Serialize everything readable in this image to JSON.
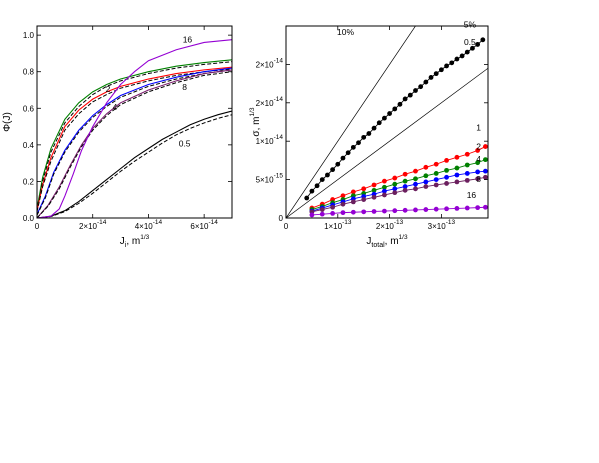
{
  "chart_data": [
    {
      "type": "line",
      "ylabel": "Φ(J)",
      "xlabel_main": "J",
      "xlabel_sub": "i",
      "xlabel_unit": "m",
      "xlabel_unit_exp": "1/3",
      "xlim": [
        0,
        7e-14
      ],
      "ylim": [
        0,
        1.05
      ],
      "xticks": [
        {
          "value": 0,
          "label": "0",
          "exp": ""
        },
        {
          "value": 2e-14,
          "label": "2×10",
          "exp": "-14"
        },
        {
          "value": 4e-14,
          "label": "4×10",
          "exp": "-14"
        },
        {
          "value": 6e-14,
          "label": "6×10",
          "exp": "-14"
        }
      ],
      "yticks": [
        {
          "value": 0,
          "label": "0.0"
        },
        {
          "value": 0.2,
          "label": "0.2"
        },
        {
          "value": 0.4,
          "label": "0.4"
        },
        {
          "value": 0.6,
          "label": "0.6"
        },
        {
          "value": 0.8,
          "label": "0.8"
        },
        {
          "value": 1.0,
          "label": "1.0"
        }
      ],
      "series": [
        {
          "label": "0.5",
          "color": "#000000",
          "x": [
            0,
            5e-15,
            1e-14,
            1.5e-14,
            2e-14,
            2.5e-14,
            3e-14,
            3.5e-14,
            4e-14,
            4.5e-14,
            5e-14,
            5.5e-14,
            6e-14,
            6.5e-14,
            7e-14
          ],
          "y": [
            0,
            0.01,
            0.04,
            0.09,
            0.15,
            0.21,
            0.27,
            0.33,
            0.38,
            0.43,
            0.47,
            0.51,
            0.54,
            0.565,
            0.585
          ],
          "dashed_y": [
            0,
            0.008,
            0.035,
            0.08,
            0.135,
            0.195,
            0.255,
            0.31,
            0.36,
            0.41,
            0.455,
            0.49,
            0.52,
            0.545,
            0.565
          ]
        },
        {
          "label": "2",
          "color": "#008000",
          "x": [
            0,
            2e-15,
            5e-15,
            1e-14,
            1.5e-14,
            2e-14,
            2.5e-14,
            3e-14,
            4e-14,
            5e-14,
            6e-14,
            7e-14
          ],
          "y": [
            0.05,
            0.22,
            0.38,
            0.54,
            0.63,
            0.69,
            0.73,
            0.76,
            0.8,
            0.83,
            0.85,
            0.865
          ],
          "dashed_y": [
            0.04,
            0.2,
            0.36,
            0.52,
            0.61,
            0.675,
            0.72,
            0.75,
            0.79,
            0.82,
            0.84,
            0.855
          ]
        },
        {
          "label": "",
          "color": "#ff0000",
          "x": [
            0,
            2e-15,
            5e-15,
            1e-14,
            1.5e-14,
            2e-14,
            2.5e-14,
            3e-14,
            4e-14,
            5e-14,
            6e-14,
            7e-14
          ],
          "y": [
            0.04,
            0.18,
            0.33,
            0.5,
            0.59,
            0.65,
            0.69,
            0.72,
            0.76,
            0.79,
            0.81,
            0.825
          ],
          "dashed_y": [
            0.035,
            0.17,
            0.31,
            0.48,
            0.57,
            0.635,
            0.675,
            0.71,
            0.75,
            0.78,
            0.8,
            0.815
          ]
        },
        {
          "label": "4",
          "color": "#0000ff",
          "x": [
            0,
            3e-15,
            6e-15,
            1e-14,
            1.5e-14,
            2e-14,
            2.5e-14,
            3e-14,
            4e-14,
            5e-14,
            6e-14,
            7e-14
          ],
          "y": [
            0.02,
            0.12,
            0.25,
            0.37,
            0.48,
            0.56,
            0.62,
            0.67,
            0.73,
            0.77,
            0.8,
            0.82
          ],
          "dashed_y": [
            0.015,
            0.11,
            0.24,
            0.36,
            0.47,
            0.55,
            0.61,
            0.66,
            0.72,
            0.76,
            0.79,
            0.81
          ]
        },
        {
          "label": "8",
          "color": "#7a1f6e",
          "x": [
            0,
            4e-15,
            8e-15,
            1.2e-14,
            1.6e-14,
            2e-14,
            2.5e-14,
            3e-14,
            4e-14,
            5e-14,
            6e-14,
            7e-14
          ],
          "y": [
            0,
            0.07,
            0.17,
            0.29,
            0.4,
            0.49,
            0.57,
            0.63,
            0.7,
            0.75,
            0.79,
            0.81
          ],
          "dashed_y": [
            0,
            0.065,
            0.16,
            0.28,
            0.39,
            0.48,
            0.56,
            0.62,
            0.69,
            0.74,
            0.78,
            0.8
          ]
        },
        {
          "label": "16",
          "color": "#9400d3",
          "x": [
            0,
            5e-15,
            8e-15,
            1e-14,
            1.3e-14,
            1.6e-14,
            2e-14,
            2.5e-14,
            3e-14,
            3.5e-14,
            4e-14,
            5e-14,
            6e-14,
            7e-14
          ],
          "y": [
            0,
            0.01,
            0.05,
            0.12,
            0.24,
            0.37,
            0.5,
            0.63,
            0.73,
            0.8,
            0.86,
            0.92,
            0.96,
            0.975
          ],
          "dashed_y": []
        }
      ],
      "curve_labels": [
        {
          "text": "16",
          "x": 5.4e-14,
          "y": 0.96
        },
        {
          "text": "2",
          "x": 2.55e-14,
          "y": 0.69
        },
        {
          "text": "4",
          "x": 2.8e-14,
          "y": 0.59
        },
        {
          "text": "8",
          "x": 5.3e-14,
          "y": 0.7
        },
        {
          "text": "0.5",
          "x": 5.3e-14,
          "y": 0.39
        }
      ]
    },
    {
      "type": "scatter",
      "xlabel_main": "J",
      "xlabel_sub": "total",
      "xlabel_unit": "m",
      "xlabel_unit_exp": "1/3",
      "ylabel_main": "σ, m",
      "ylabel_exp": "1/3",
      "xlim": [
        0,
        3.9e-13
      ],
      "ylim": [
        0,
        2.5e-14
      ],
      "xticks": [
        {
          "value": 0,
          "label": "0",
          "exp": ""
        },
        {
          "value": 1e-13,
          "label": "1×10",
          "exp": "-13"
        },
        {
          "value": 2e-13,
          "label": "2×10",
          "exp": "-13"
        },
        {
          "value": 3e-13,
          "label": "3×10",
          "exp": "-13"
        }
      ],
      "yticks": [
        {
          "value": 0,
          "label": "0",
          "exp": ""
        },
        {
          "value": 5e-15,
          "label": "5×10",
          "exp": "-15"
        },
        {
          "value": 1e-14,
          "label": "1×10",
          "exp": "-14"
        },
        {
          "value": 1.5e-14,
          "label": "2×10",
          "exp": "-14"
        },
        {
          "value": 2e-14,
          "label": "2×10",
          "exp": "-14"
        }
      ],
      "reference_lines": [
        {
          "label": "10%",
          "slope": 0.1
        },
        {
          "label": "5%",
          "slope": 0.05
        }
      ],
      "series": [
        {
          "label": "0.5",
          "color": "#000000",
          "x": [
            4e-14,
            5e-14,
            6e-14,
            7e-14,
            8e-14,
            9e-14,
            1e-13,
            1.1e-13,
            1.2e-13,
            1.3e-13,
            1.4e-13,
            1.5e-13,
            1.6e-13,
            1.7e-13,
            1.8e-13,
            1.9e-13,
            2e-13,
            2.1e-13,
            2.2e-13,
            2.3e-13,
            2.4e-13,
            2.5e-13,
            2.6e-13,
            2.7e-13,
            2.8e-13,
            2.9e-13,
            3e-13,
            3.1e-13,
            3.2e-13,
            3.3e-13,
            3.4e-13,
            3.5e-13,
            3.6e-13,
            3.7e-13,
            3.8e-13
          ],
          "y": [
            2.6e-15,
            3.5e-15,
            4.2e-15,
            5e-15,
            5.6e-15,
            6.3e-15,
            7e-15,
            7.8e-15,
            8.5e-15,
            9.2e-15,
            9.8e-15,
            1.05e-14,
            1.1e-14,
            1.17e-14,
            1.24e-14,
            1.3e-14,
            1.36e-14,
            1.42e-14,
            1.48e-14,
            1.55e-14,
            1.6e-14,
            1.66e-14,
            1.71e-14,
            1.77e-14,
            1.83e-14,
            1.88e-14,
            1.93e-14,
            1.98e-14,
            2.02e-14,
            2.07e-14,
            2.11e-14,
            2.16e-14,
            2.21e-14,
            2.26e-14,
            2.32e-14
          ]
        },
        {
          "label": "1",
          "color": "#ff0000",
          "x": [
            5e-14,
            7e-14,
            9e-14,
            1.1e-13,
            1.3e-13,
            1.5e-13,
            1.7e-13,
            1.9e-13,
            2.1e-13,
            2.3e-13,
            2.5e-13,
            2.7e-13,
            2.9e-13,
            3.1e-13,
            3.3e-13,
            3.5e-13,
            3.7e-13,
            3.85e-13
          ],
          "y": [
            1.3e-15,
            1.8e-15,
            2.4e-15,
            2.9e-15,
            3.4e-15,
            3.8e-15,
            4.3e-15,
            4.8e-15,
            5.2e-15,
            5.7e-15,
            6.1e-15,
            6.6e-15,
            7e-15,
            7.5e-15,
            7.9e-15,
            8.3e-15,
            8.8e-15,
            9.3e-15
          ]
        },
        {
          "label": "2",
          "color": "#008000",
          "x": [
            5e-14,
            7e-14,
            9e-14,
            1.1e-13,
            1.3e-13,
            1.5e-13,
            1.7e-13,
            1.9e-13,
            2.1e-13,
            2.3e-13,
            2.5e-13,
            2.7e-13,
            2.9e-13,
            3.1e-13,
            3.3e-13,
            3.5e-13,
            3.7e-13,
            3.85e-13
          ],
          "y": [
            1.1e-15,
            1.5e-15,
            2e-15,
            2.4e-15,
            2.9e-15,
            3.2e-15,
            3.6e-15,
            4e-15,
            4.4e-15,
            4.8e-15,
            5.1e-15,
            5.5e-15,
            5.8e-15,
            6.2e-15,
            6.5e-15,
            6.9e-15,
            7.2e-15,
            7.6e-15
          ]
        },
        {
          "label": "4",
          "color": "#0000ff",
          "x": [
            5e-14,
            7e-14,
            9e-14,
            1.1e-13,
            1.3e-13,
            1.5e-13,
            1.7e-13,
            1.9e-13,
            2.1e-13,
            2.3e-13,
            2.5e-13,
            2.7e-13,
            2.9e-13,
            3.1e-13,
            3.3e-13,
            3.5e-13,
            3.7e-13,
            3.85e-13
          ],
          "y": [
            9e-16,
            1.3e-15,
            1.7e-15,
            2.1e-15,
            2.5e-15,
            2.8e-15,
            3.1e-15,
            3.5e-15,
            3.8e-15,
            4.1e-15,
            4.4e-15,
            4.7e-15,
            5e-15,
            5.3e-15,
            5.6e-15,
            5.8e-15,
            6e-15,
            6.1e-15
          ]
        },
        {
          "label": "8",
          "color": "#6b1f5e",
          "x": [
            5e-14,
            7e-14,
            9e-14,
            1.1e-13,
            1.3e-13,
            1.5e-13,
            1.7e-13,
            1.9e-13,
            2.1e-13,
            2.3e-13,
            2.5e-13,
            2.7e-13,
            2.9e-13,
            3.1e-13,
            3.3e-13,
            3.5e-13,
            3.7e-13,
            3.85e-13
          ],
          "y": [
            8e-16,
            1.1e-15,
            1.4e-15,
            1.8e-15,
            2.1e-15,
            2.4e-15,
            2.7e-15,
            3e-15,
            3.3e-15,
            3.6e-15,
            3.8e-15,
            4.1e-15,
            4.3e-15,
            4.5e-15,
            4.7e-15,
            4.9e-15,
            5.1e-15,
            5.3e-15
          ]
        },
        {
          "label": "16",
          "color": "#9400d3",
          "x": [
            5e-14,
            7e-14,
            9e-14,
            1.1e-13,
            1.3e-13,
            1.5e-13,
            1.7e-13,
            1.9e-13,
            2.1e-13,
            2.3e-13,
            2.5e-13,
            2.7e-13,
            2.9e-13,
            3.1e-13,
            3.3e-13,
            3.5e-13,
            3.7e-13,
            3.85e-13
          ],
          "y": [
            4e-16,
            5e-16,
            6e-16,
            7e-16,
            7.5e-16,
            8e-16,
            8.5e-16,
            9e-16,
            9.5e-16,
            1e-15,
            1.05e-15,
            1.1e-15,
            1.15e-15,
            1.2e-15,
            1.25e-15,
            1.3e-15,
            1.35e-15,
            1.4e-15
          ]
        }
      ],
      "curve_labels": [
        {
          "text": "10%",
          "x": 1.15e-13,
          "y": 2.38e-14
        },
        {
          "text": "5%",
          "x": 3.55e-13,
          "y": 2.48e-14
        },
        {
          "text": "0.5",
          "x": 3.55e-13,
          "y": 2.25e-14
        },
        {
          "text": "1",
          "x": 3.72e-13,
          "y": 1.14e-14
        },
        {
          "text": "2",
          "x": 3.72e-13,
          "y": 8.9e-15
        },
        {
          "text": "4",
          "x": 3.72e-13,
          "y": 7.3e-15
        },
        {
          "text": "8",
          "x": 3.72e-13,
          "y": 4.7e-15
        },
        {
          "text": "16",
          "x": 3.58e-13,
          "y": 2.6e-15
        }
      ]
    }
  ]
}
